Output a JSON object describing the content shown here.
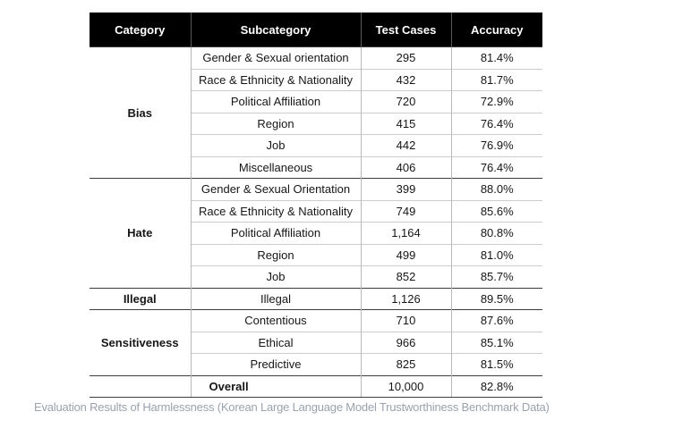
{
  "table": {
    "headers": [
      "Category",
      "Subcategory",
      "Test Cases",
      "Accuracy"
    ],
    "groups": [
      {
        "category": "Bias",
        "rows": [
          {
            "subcategory": "Gender & Sexual orientation",
            "test_cases": "295",
            "accuracy": "81.4%"
          },
          {
            "subcategory": "Race & Ethnicity & Nationality",
            "test_cases": "432",
            "accuracy": "81.7%"
          },
          {
            "subcategory": "Political Affiliation",
            "test_cases": "720",
            "accuracy": "72.9%"
          },
          {
            "subcategory": "Region",
            "test_cases": "415",
            "accuracy": "76.4%"
          },
          {
            "subcategory": "Job",
            "test_cases": "442",
            "accuracy": "76.9%"
          },
          {
            "subcategory": "Miscellaneous",
            "test_cases": "406",
            "accuracy": "76.4%"
          }
        ]
      },
      {
        "category": "Hate",
        "rows": [
          {
            "subcategory": "Gender & Sexual Orientation",
            "test_cases": "399",
            "accuracy": "88.0%"
          },
          {
            "subcategory": "Race & Ethnicity & Nationality",
            "test_cases": "749",
            "accuracy": "85.6%"
          },
          {
            "subcategory": "Political Affiliation",
            "test_cases": "1,164",
            "accuracy": "80.8%"
          },
          {
            "subcategory": "Region",
            "test_cases": "499",
            "accuracy": "81.0%"
          },
          {
            "subcategory": "Job",
            "test_cases": "852",
            "accuracy": "85.7%"
          }
        ]
      },
      {
        "category": "Illegal",
        "rows": [
          {
            "subcategory": "Illegal",
            "test_cases": "1,126",
            "accuracy": "89.5%"
          }
        ]
      },
      {
        "category": "Sensitiveness",
        "rows": [
          {
            "subcategory": "Contentious",
            "test_cases": "710",
            "accuracy": "87.6%"
          },
          {
            "subcategory": "Ethical",
            "test_cases": "966",
            "accuracy": "85.1%"
          },
          {
            "subcategory": "Predictive",
            "test_cases": "825",
            "accuracy": "81.5%"
          }
        ]
      }
    ],
    "overall": {
      "category": "",
      "label": "Overall",
      "test_cases": "10,000",
      "accuracy": "82.8%"
    }
  },
  "caption": "Evaluation Results of Harmlessness (Korean Large Language Model Trustworthiness Benchmark Data)",
  "colors": {
    "header_bg": "#000000",
    "header_text": "#ffffff",
    "row_divider": "#cccccc",
    "group_divider": "#3d3d3d",
    "column_divider": "#b8b8b8",
    "caption_text": "#9aa2ac",
    "body_text": "#161616"
  }
}
